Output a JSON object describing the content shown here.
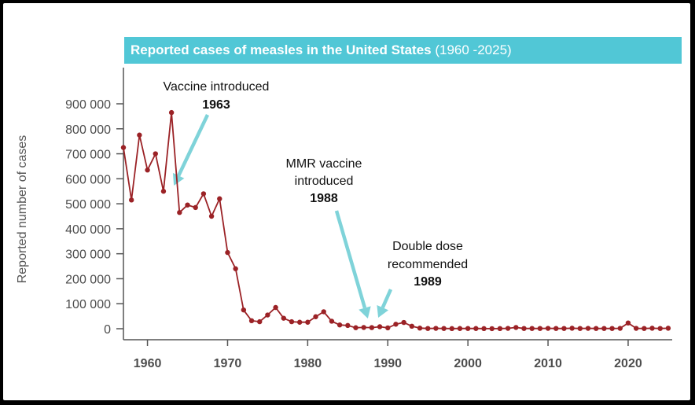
{
  "colors": {
    "title_bg": "#51c7d6",
    "line": "#9b2226",
    "arrow": "#7fd3d9",
    "axis": "#555555"
  },
  "chart_data": {
    "type": "line",
    "title": "Reported cases of measles in the United States",
    "title_range": "(1960 -2025)",
    "xlabel": "",
    "ylabel": "Reported number of cases",
    "xlim": [
      1957,
      2025.5
    ],
    "ylim": [
      0,
      900000
    ],
    "y_ticks": [
      0,
      100000,
      200000,
      300000,
      400000,
      500000,
      600000,
      700000,
      800000,
      900000
    ],
    "y_tick_labels": [
      "0",
      "100 000",
      "200 000",
      "300 000",
      "400 000",
      "500 000",
      "600 000",
      "700 000",
      "800 000",
      "900 000"
    ],
    "x_ticks": [
      1960,
      1970,
      1980,
      1990,
      2000,
      2010,
      2020
    ],
    "x_tick_labels": [
      "1960",
      "1970",
      "1980",
      "1990",
      "2000",
      "2010",
      "2020"
    ],
    "grid": false,
    "series": [
      {
        "name": "Reported cases",
        "x": [
          1957,
          1958,
          1959,
          1960,
          1961,
          1962,
          1963,
          1964,
          1965,
          1966,
          1967,
          1968,
          1969,
          1970,
          1971,
          1972,
          1973,
          1974,
          1975,
          1976,
          1977,
          1978,
          1979,
          1980,
          1981,
          1982,
          1983,
          1984,
          1985,
          1986,
          1987,
          1988,
          1989,
          1990,
          1991,
          1992,
          1993,
          1994,
          1995,
          1996,
          1997,
          1998,
          1999,
          2000,
          2001,
          2002,
          2003,
          2004,
          2005,
          2006,
          2007,
          2008,
          2009,
          2010,
          2011,
          2012,
          2013,
          2014,
          2015,
          2016,
          2017,
          2018,
          2019,
          2020,
          2021,
          2022,
          2023,
          2024,
          2025
        ],
        "values": [
          725000,
          515000,
          775000,
          635000,
          700000,
          550000,
          865000,
          465000,
          495000,
          485000,
          540000,
          450000,
          520000,
          305000,
          240000,
          75000,
          32000,
          28000,
          55000,
          85000,
          42000,
          28000,
          26000,
          26000,
          48000,
          68000,
          30000,
          15000,
          13000,
          4000,
          5000,
          4500,
          8000,
          3500,
          18000,
          25000,
          10000,
          2500,
          1000,
          1500,
          1000,
          500,
          800,
          1000,
          800,
          500,
          300,
          600,
          1500,
          5000,
          1000,
          1000,
          1000,
          1500,
          1000,
          1000,
          2000,
          1000,
          1500,
          1000,
          1000,
          1000,
          1500,
          23000,
          1500,
          1000,
          2000,
          1000,
          2000
        ]
      }
    ],
    "annotations": [
      {
        "text": "Vaccine introduced",
        "year_label": "1963",
        "year": 1963
      },
      {
        "text": "MMR vaccine\nintroduced",
        "year_label": "1988",
        "year": 1988
      },
      {
        "text": "Double dose\nrecommended",
        "year_label": "1989",
        "year": 1989
      }
    ]
  }
}
